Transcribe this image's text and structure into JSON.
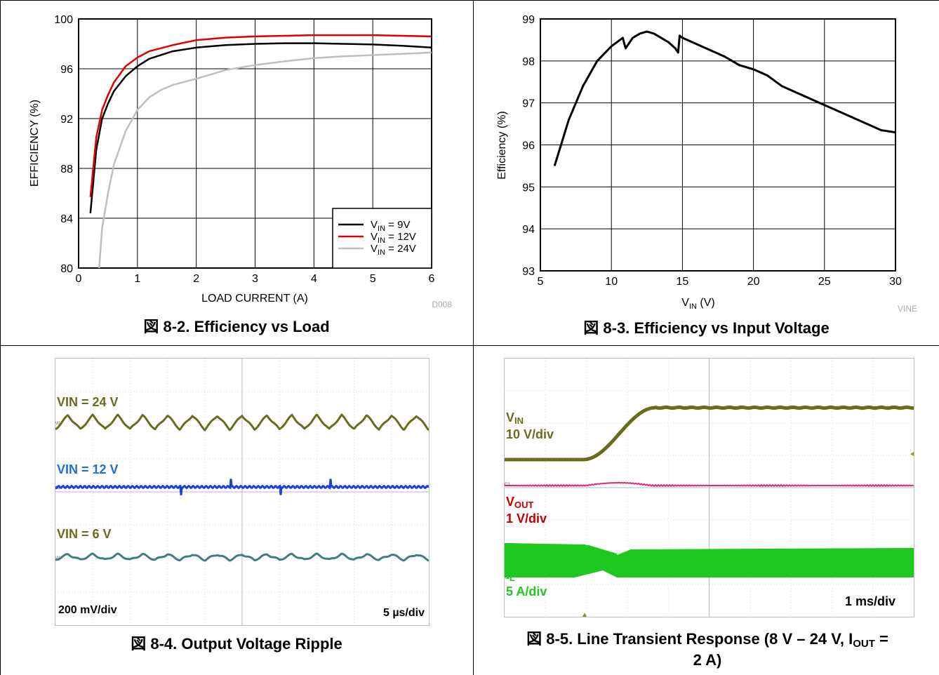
{
  "captions": {
    "fig2": "図 8-2. Efficiency vs Load",
    "fig3": "図 8-3. Efficiency vs Input Voltage",
    "fig4": "図 8-4. Output Voltage Ripple",
    "fig5_line1_pre": "図 8-5. Line Transient Response (8 V – 24 V, I",
    "fig5_line1_sub": "OUT",
    "fig5_line1_post": " =",
    "fig5_line2": "2 A)"
  },
  "chart_data": [
    {
      "type": "line",
      "id": "efficiency-vs-load",
      "xlabel": "LOAD CURRENT (A)",
      "ylabel": "EFFICIENCY (%)",
      "xlim": [
        0,
        6
      ],
      "ylim": [
        80,
        100
      ],
      "xticks": [
        0,
        1,
        2,
        3,
        4,
        5,
        6
      ],
      "yticks": [
        80,
        84,
        88,
        92,
        96,
        100
      ],
      "grid": true,
      "legend_position": "bottom-right",
      "corner_code": "D008",
      "series": [
        {
          "name_main": "V",
          "name_sub": "IN",
          "name_rest": " = 9V",
          "color": "#000000",
          "x": [
            0.2,
            0.3,
            0.4,
            0.5,
            0.6,
            0.8,
            1.0,
            1.2,
            1.6,
            2.0,
            2.5,
            3.0,
            3.5,
            4.0,
            4.5,
            5.0,
            5.5,
            6.0
          ],
          "y": [
            84.4,
            89.5,
            92.0,
            93.2,
            94.2,
            95.4,
            96.2,
            96.8,
            97.4,
            97.7,
            97.9,
            98.0,
            98.05,
            98.05,
            98.0,
            97.95,
            97.85,
            97.7
          ]
        },
        {
          "name_main": "V",
          "name_sub": "IN",
          "name_rest": " = 12V",
          "color": "#e00000",
          "x": [
            0.2,
            0.3,
            0.4,
            0.5,
            0.6,
            0.8,
            1.0,
            1.2,
            1.6,
            2.0,
            2.5,
            3.0,
            3.5,
            4.0,
            4.5,
            5.0,
            5.5,
            6.0
          ],
          "y": [
            85.7,
            90.5,
            92.7,
            93.9,
            94.9,
            96.2,
            96.9,
            97.4,
            97.9,
            98.3,
            98.5,
            98.6,
            98.65,
            98.7,
            98.7,
            98.7,
            98.65,
            98.6
          ]
        },
        {
          "name_main": "V",
          "name_sub": "IN",
          "name_rest": " = 24V",
          "color": "#bfbfbf",
          "x": [
            0.35,
            0.4,
            0.5,
            0.6,
            0.8,
            1.0,
            1.2,
            1.4,
            1.6,
            2.0,
            2.5,
            3.0,
            3.5,
            4.0,
            4.5,
            5.0,
            5.5,
            6.0
          ],
          "y": [
            80.0,
            83.2,
            86.0,
            88.3,
            91.0,
            92.7,
            93.7,
            94.3,
            94.7,
            95.2,
            95.9,
            96.3,
            96.6,
            96.85,
            97.0,
            97.1,
            97.2,
            97.3
          ]
        }
      ]
    },
    {
      "type": "line",
      "id": "efficiency-vs-vin",
      "xlabel_main": "V",
      "xlabel_sub": "IN",
      "xlabel_rest": " (V)",
      "ylabel": "Efficiency (%)",
      "xlim": [
        5,
        30
      ],
      "ylim": [
        93,
        99
      ],
      "xticks": [
        5,
        10,
        15,
        20,
        25,
        30
      ],
      "yticks": [
        93,
        94,
        95,
        96,
        97,
        98,
        99
      ],
      "grid": true,
      "corner_code": "VINE",
      "series": [
        {
          "color": "#000000",
          "x": [
            6.0,
            7.0,
            8.0,
            9.0,
            10.0,
            10.8,
            11.0,
            11.5,
            12.0,
            12.5,
            13.0,
            13.5,
            14.0,
            14.5,
            14.7,
            14.8,
            15.0,
            16.0,
            17.0,
            18.0,
            19.0,
            20.0,
            21.0,
            22.0,
            23.0,
            24.0,
            25.0,
            26.0,
            27.0,
            28.0,
            29.0,
            30.0
          ],
          "y": [
            95.5,
            96.6,
            97.4,
            98.0,
            98.35,
            98.55,
            98.3,
            98.55,
            98.65,
            98.7,
            98.65,
            98.55,
            98.45,
            98.3,
            98.2,
            98.6,
            98.55,
            98.4,
            98.25,
            98.1,
            97.9,
            97.8,
            97.65,
            97.4,
            97.25,
            97.1,
            96.95,
            96.8,
            96.65,
            96.5,
            96.35,
            96.3
          ]
        }
      ]
    },
    {
      "type": "line",
      "id": "output-voltage-ripple",
      "scale_left": "200 mV/div",
      "scale_right": "5 µs/div",
      "traces": [
        {
          "label": "VIN = 24 V",
          "color": "#6b6b1e",
          "marker": "M1",
          "form": "triangle",
          "cycles": 15,
          "amp": 10
        },
        {
          "label": "VIN = 12 V",
          "color": "#1f3fd8",
          "marker": "C3",
          "form": "spiky",
          "cycles": 15,
          "amp": 2
        },
        {
          "label": "VIN = 6 V",
          "color": "#3f7f7f",
          "marker": "M4",
          "form": "triangle",
          "cycles": 15,
          "amp": 4
        }
      ]
    },
    {
      "type": "line",
      "id": "line-transient-response",
      "scale_right": "1 ms/div",
      "traces": [
        {
          "label_main": "V",
          "label_sub": "IN",
          "scale": "10 V/div",
          "color": "#6b6b1e",
          "marker": "C1"
        },
        {
          "label_main": "V",
          "label_sub": "OUT",
          "scale": "1 V/div",
          "color": "#c00000",
          "marker": "C1"
        },
        {
          "label_main": "I",
          "label_sub": "L",
          "scale": "5 A/div",
          "color": "#1ec81e",
          "marker": "C2"
        }
      ]
    }
  ]
}
